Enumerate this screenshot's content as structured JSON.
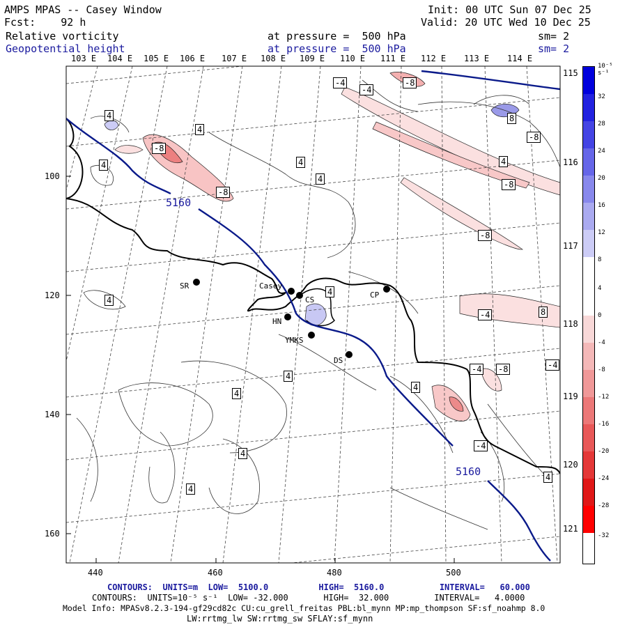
{
  "header": {
    "title": "AMPS MPAS -- Casey Window",
    "init": "Init: 00 UTC Sun 07 Dec 25",
    "fcst": "Fcst:    92 h",
    "valid": "Valid: 20 UTC Wed 10 Dec 25",
    "field1": "Relative vorticity",
    "field1_level": "at pressure =  500 hPa",
    "field1_sm": "sm= 2",
    "field2": "Geopotential height",
    "field2_level": "at pressure =  500 hPa",
    "field2_sm": "sm= 2"
  },
  "map": {
    "lon_labels": [
      "103 E",
      "104 E",
      "105 E",
      "106 E",
      "107 E",
      "108 E",
      "109 E",
      "110 E",
      "111 E",
      "112 E",
      "113 E",
      "114 E"
    ],
    "lat_labels": [
      "115 E",
      "116 E",
      "117 E",
      "118 E",
      "119 E",
      "120 E",
      "121 E"
    ],
    "x_ticks": [
      "440",
      "460",
      "480",
      "500"
    ],
    "y_ticks": [
      "100",
      "120",
      "140",
      "160"
    ],
    "height_labels": [
      "5160",
      "5160"
    ],
    "contour_labels": [
      "4",
      "-4",
      "-4",
      "-8",
      "4",
      "8",
      "-8",
      "4",
      "-8",
      "4",
      "4",
      "-8",
      "4",
      "-8",
      "4",
      "-8",
      "-4",
      "4",
      "8",
      "-4",
      "-8",
      "4",
      "-4",
      "4",
      "4",
      "4",
      "-4",
      "4",
      "4",
      "4",
      "4",
      "-8"
    ],
    "stations": [
      {
        "name": "SR"
      },
      {
        "name": "Casey"
      },
      {
        "name": "CS"
      },
      {
        "name": "CP"
      },
      {
        "name": "HN"
      },
      {
        "name": "YMKS"
      },
      {
        "name": "DS"
      }
    ],
    "colors": {
      "coast": "#000000",
      "height": "#0a1a8a",
      "negative": "#e05050",
      "positive": "#3a3ad8"
    }
  },
  "colorbar": {
    "unit": "10⁻⁵ s⁻¹",
    "ticks": [
      "32",
      "28",
      "24",
      "20",
      "16",
      "12",
      "8",
      "4",
      "0",
      "-4",
      "-8",
      "-12",
      "-16",
      "-20",
      "-24",
      "-28",
      "-32"
    ],
    "colors": [
      "#0000dd",
      "#2222e0",
      "#4444e4",
      "#6666e8",
      "#8888ec",
      "#aaaaf0",
      "#ccccf6",
      "#ffffff",
      "#ffffff",
      "#f8d8d8",
      "#f4b8b8",
      "#f09898",
      "#ec7878",
      "#e85858",
      "#e43838",
      "#e01818",
      "#ff0000"
    ]
  },
  "footer": {
    "line1": "CONTOURS:  UNITS=m  LOW=  5100.0          HIGH=  5160.0           INTERVAL=   60.000",
    "line2": "CONTOURS:  UNITS=10⁻⁵ s⁻¹  LOW= -32.000       HIGH=  32.000         INTERVAL=   4.0000",
    "line3": "Model Info: MPASv8.2.3-194-gf29cd82c CU:cu_grell_freitas PBL:bl_mynn MP:mp_thompson SF:sf_noahmp 8.0",
    "line4": "LW:rrtmg_lw SW:rrtmg_sw SFLAY:sf_mynn"
  }
}
